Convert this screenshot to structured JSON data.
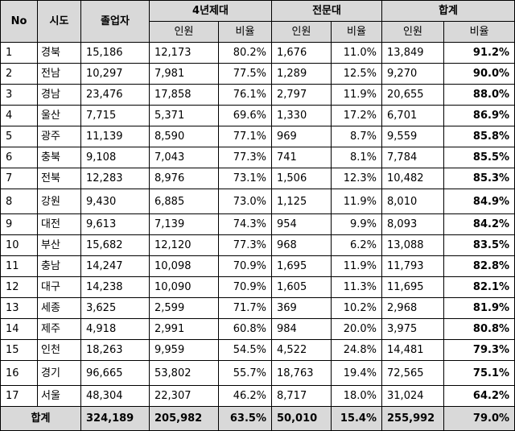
{
  "headers": {
    "no": "No",
    "region": "시도",
    "graduates": "졸업자",
    "univ": "4년제대",
    "college": "전문대",
    "total": "합계",
    "persons": "인원",
    "ratio": "비율"
  },
  "rows": [
    {
      "no": "1",
      "region": "경북",
      "graduates": "15,186",
      "univ_n": "12,173",
      "univ_r": "80.2%",
      "col_n": "1,676",
      "col_r": "11.0%",
      "tot_n": "13,849",
      "tot_r": "91.2%"
    },
    {
      "no": "2",
      "region": "전남",
      "graduates": "10,297",
      "univ_n": "7,981",
      "univ_r": "77.5%",
      "col_n": "1,289",
      "col_r": "12.5%",
      "tot_n": "9,270",
      "tot_r": "90.0%"
    },
    {
      "no": "3",
      "region": "경남",
      "graduates": "23,476",
      "univ_n": "17,858",
      "univ_r": "76.1%",
      "col_n": "2,797",
      "col_r": "11.9%",
      "tot_n": "20,655",
      "tot_r": "88.0%"
    },
    {
      "no": "4",
      "region": "울산",
      "graduates": "7,715",
      "univ_n": "5,371",
      "univ_r": "69.6%",
      "col_n": "1,330",
      "col_r": "17.2%",
      "tot_n": "6,701",
      "tot_r": "86.9%"
    },
    {
      "no": "5",
      "region": "광주",
      "graduates": "11,139",
      "univ_n": "8,590",
      "univ_r": "77.1%",
      "col_n": "969",
      "col_r": "8.7%",
      "tot_n": "9,559",
      "tot_r": "85.8%"
    },
    {
      "no": "6",
      "region": "충북",
      "graduates": "9,108",
      "univ_n": "7,043",
      "univ_r": "77.3%",
      "col_n": "741",
      "col_r": "8.1%",
      "tot_n": "7,784",
      "tot_r": "85.5%"
    },
    {
      "no": "7",
      "region": "전북",
      "graduates": "12,283",
      "univ_n": "8,976",
      "univ_r": "73.1%",
      "col_n": "1,506",
      "col_r": "12.3%",
      "tot_n": "10,482",
      "tot_r": "85.3%"
    },
    {
      "no": "8",
      "region": "강원",
      "graduates": "9,430",
      "univ_n": "6,885",
      "univ_r": "73.0%",
      "col_n": "1,125",
      "col_r": "11.9%",
      "tot_n": "8,010",
      "tot_r": "84.9%"
    },
    {
      "no": "9",
      "region": "대전",
      "graduates": "9,613",
      "univ_n": "7,139",
      "univ_r": "74.3%",
      "col_n": "954",
      "col_r": "9.9%",
      "tot_n": "8,093",
      "tot_r": "84.2%"
    },
    {
      "no": "10",
      "region": "부산",
      "graduates": "15,682",
      "univ_n": "12,120",
      "univ_r": "77.3%",
      "col_n": "968",
      "col_r": "6.2%",
      "tot_n": "13,088",
      "tot_r": "83.5%"
    },
    {
      "no": "11",
      "region": "충남",
      "graduates": "14,247",
      "univ_n": "10,098",
      "univ_r": "70.9%",
      "col_n": "1,695",
      "col_r": "11.9%",
      "tot_n": "11,793",
      "tot_r": "82.8%"
    },
    {
      "no": "12",
      "region": "대구",
      "graduates": "14,238",
      "univ_n": "10,090",
      "univ_r": "70.9%",
      "col_n": "1,605",
      "col_r": "11.3%",
      "tot_n": "11,695",
      "tot_r": "82.1%"
    },
    {
      "no": "13",
      "region": "세종",
      "graduates": "3,625",
      "univ_n": "2,599",
      "univ_r": "71.7%",
      "col_n": "369",
      "col_r": "10.2%",
      "tot_n": "2,968",
      "tot_r": "81.9%"
    },
    {
      "no": "14",
      "region": "제주",
      "graduates": "4,918",
      "univ_n": "2,991",
      "univ_r": "60.8%",
      "col_n": "984",
      "col_r": "20.0%",
      "tot_n": "3,975",
      "tot_r": "80.8%"
    },
    {
      "no": "15",
      "region": "인천",
      "graduates": "18,263",
      "univ_n": "9,959",
      "univ_r": "54.5%",
      "col_n": "4,522",
      "col_r": "24.8%",
      "tot_n": "14,481",
      "tot_r": "79.3%"
    },
    {
      "no": "16",
      "region": "경기",
      "graduates": "96,665",
      "univ_n": "53,802",
      "univ_r": "55.7%",
      "col_n": "18,763",
      "col_r": "19.4%",
      "tot_n": "72,565",
      "tot_r": "75.1%"
    },
    {
      "no": "17",
      "region": "서울",
      "graduates": "48,304",
      "univ_n": "22,307",
      "univ_r": "46.2%",
      "col_n": "8,717",
      "col_r": "18.0%",
      "tot_n": "31,024",
      "tot_r": "64.2%"
    }
  ],
  "footer": {
    "label": "합계",
    "graduates": "324,189",
    "univ_n": "205,982",
    "univ_r": "63.5%",
    "col_n": "50,010",
    "col_r": "15.4%",
    "tot_n": "255,992",
    "tot_r": "79.0%"
  }
}
